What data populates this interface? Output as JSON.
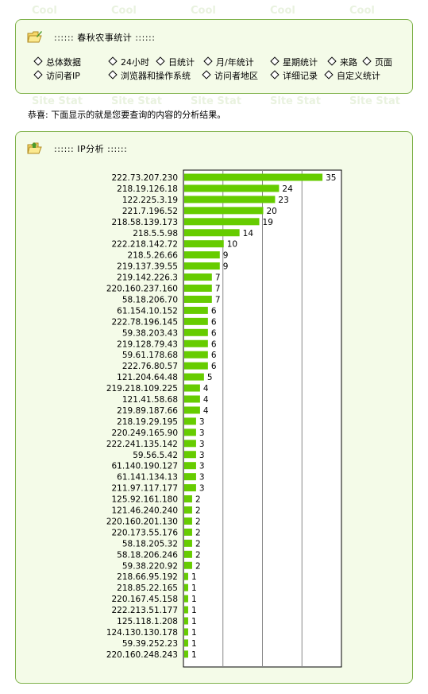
{
  "watermark": [
    "Cool",
    "Cool",
    "Cool",
    "Cool",
    "Cool",
    "Site Stat",
    "Site Stat",
    "Site Stat",
    "Site Stat",
    "Site Stat"
  ],
  "top_panel": {
    "title": "::::::  春秋农事统计  ::::::",
    "nav_row1": [
      "总体数据",
      "24小时",
      "日统计",
      "月/年统计",
      "星期统计",
      "来路",
      "页面"
    ],
    "nav_row2": [
      "访问者IP",
      "浏览器和操作系统",
      "访问者地区",
      "详细记录",
      "自定义统计"
    ]
  },
  "congrats_text": "恭喜: 下面显示的就是您要查询的内容的分析结果。",
  "ip_panel": {
    "title": "::::::  IP分析  ::::::"
  },
  "colors": {
    "bar": "#66cc00",
    "border": "#7fb24a",
    "panel_bg": "#f4fbe8"
  },
  "chart_data": {
    "type": "bar",
    "orientation": "horizontal",
    "categories": [
      "222.73.207.230",
      "218.19.126.18",
      "122.225.3.19",
      "221.7.196.52",
      "218.58.139.173",
      "218.5.5.98",
      "222.218.142.72",
      "218.5.26.66",
      "219.137.39.55",
      "219.142.226.3",
      "220.160.237.160",
      "58.18.206.70",
      "61.154.10.152",
      "222.78.196.145",
      "59.38.203.43",
      "219.128.79.43",
      "59.61.178.68",
      "222.76.80.57",
      "121.204.64.48",
      "219.218.109.225",
      "121.41.58.68",
      "219.89.187.66",
      "218.19.29.195",
      "220.249.165.90",
      "222.241.135.142",
      "59.56.5.42",
      "61.140.190.127",
      "61.141.134.13",
      "211.97.117.177",
      "125.92.161.180",
      "121.46.240.240",
      "220.160.201.130",
      "220.173.55.176",
      "58.18.205.32",
      "58.18.206.246",
      "59.38.220.92",
      "218.66.95.192",
      "218.85.22.165",
      "220.167.45.158",
      "222.213.51.177",
      "125.118.1.208",
      "124.130.130.178",
      "59.39.252.23",
      "220.160.248.243"
    ],
    "values": [
      35,
      24,
      23,
      20,
      19,
      14,
      10,
      9,
      9,
      7,
      7,
      7,
      6,
      6,
      6,
      6,
      6,
      6,
      5,
      4,
      4,
      4,
      3,
      3,
      3,
      3,
      3,
      3,
      3,
      2,
      2,
      2,
      2,
      2,
      2,
      2,
      1,
      1,
      1,
      1,
      1,
      1,
      1,
      1
    ],
    "xlim": [
      0,
      40
    ],
    "grid": true
  }
}
